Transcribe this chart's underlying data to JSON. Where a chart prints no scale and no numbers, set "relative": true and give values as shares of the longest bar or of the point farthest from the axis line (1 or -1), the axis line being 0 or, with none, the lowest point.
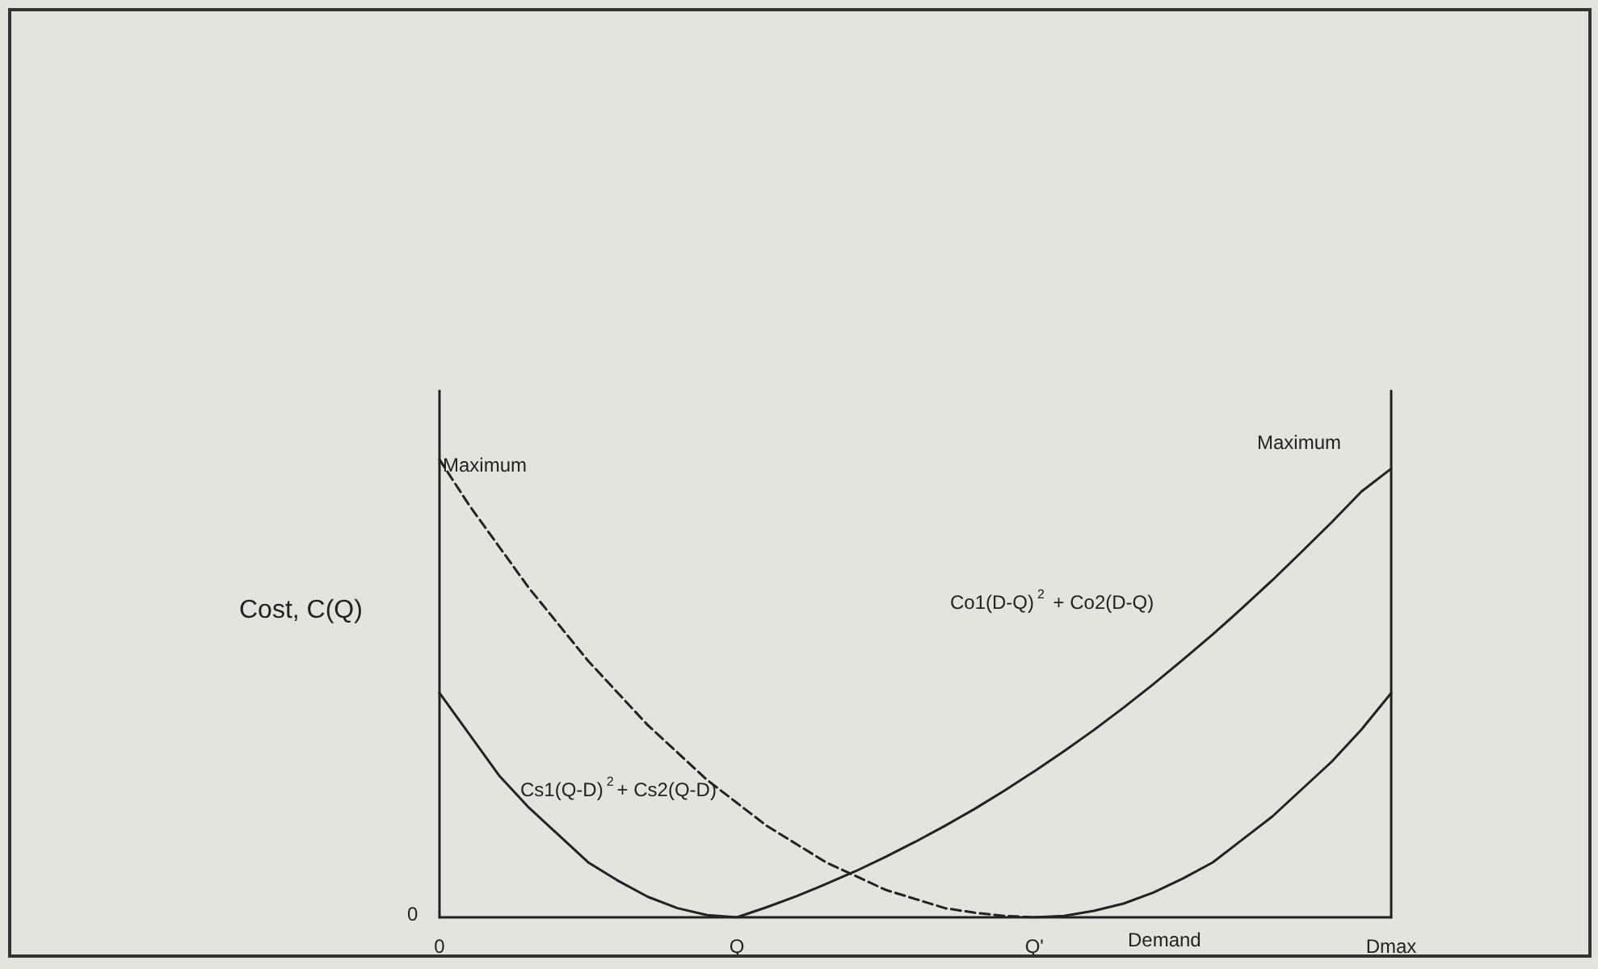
{
  "chart_data": {
    "type": "line",
    "relative": true,
    "ylabel": "Cost, C(Q)",
    "xlabel": "Demand",
    "categories": [
      "0",
      null,
      null,
      null,
      null,
      null,
      null,
      null,
      null,
      null,
      "Q",
      null,
      null,
      null,
      null,
      null,
      null,
      null,
      null,
      null,
      "Q'",
      null,
      null,
      null,
      null,
      null,
      null,
      null,
      null,
      null,
      null,
      null,
      "Dmax"
    ],
    "series": [
      {
        "color": "#222222",
        "line_style": "solid",
        "values": [
          0.49,
          0.4,
          0.31,
          0.24,
          0.18,
          0.12,
          0.08,
          0.045,
          0.02,
          0.005,
          0,
          0.022,
          0.046,
          0.073,
          0.101,
          0.132,
          0.165,
          0.2,
          0.237,
          0.277,
          0.319,
          0.363,
          0.409,
          0.458,
          0.509,
          0.563,
          0.618,
          0.676,
          0.736,
          0.799,
          0.863,
          0.93,
          0.98
        ]
      },
      {
        "color": "#222222",
        "line_style": "dashed",
        "values": [
          1.0,
          0.9,
          0.81,
          0.72,
          0.64,
          0.56,
          0.49,
          0.42,
          0.36,
          0.3,
          0.25,
          0.2,
          0.16,
          0.12,
          0.09,
          0.06,
          0.04,
          0.02,
          0.01,
          0.003,
          0,
          null,
          null,
          null,
          null,
          null,
          null,
          null,
          null,
          null,
          null,
          null,
          null
        ]
      },
      {
        "color": "#222222",
        "line_style": "solid",
        "values": [
          null,
          null,
          null,
          null,
          null,
          null,
          null,
          null,
          null,
          null,
          null,
          null,
          null,
          null,
          null,
          null,
          null,
          null,
          null,
          null,
          0,
          0.003,
          0.014,
          0.03,
          0.054,
          0.085,
          0.12,
          0.17,
          0.22,
          0.28,
          0.34,
          0.41,
          0.49
        ]
      }
    ],
    "annotations": [
      "Maximum",
      "Maximum",
      "Co1(D-Q)$^{2}$ + Co2(D-Q)",
      "Cs1(Q-D)$^{2}$+ Cs2(Q-D)",
      "0"
    ],
    "grid": false,
    "marker": "none"
  }
}
